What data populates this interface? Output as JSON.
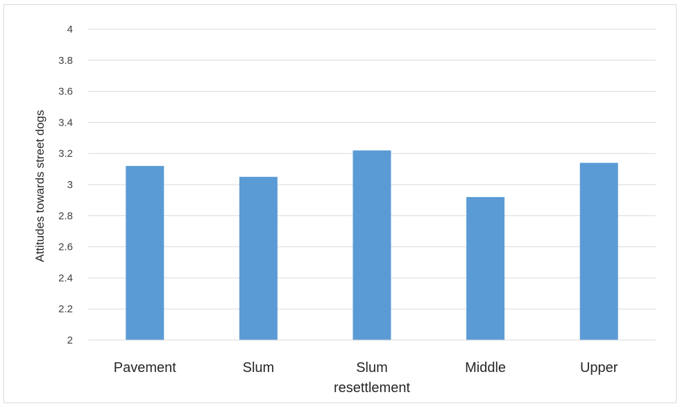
{
  "chart_data": {
    "type": "bar",
    "title": "",
    "xlabel": "",
    "ylabel": "Attitudes towards street dogs",
    "categories": [
      [
        "Pavement"
      ],
      [
        "Slum"
      ],
      [
        "Slum",
        "resettlement"
      ],
      [
        "Middle"
      ],
      [
        "Upper"
      ]
    ],
    "values": [
      3.12,
      3.05,
      3.22,
      2.92,
      3.14
    ],
    "ylim": [
      2,
      4
    ],
    "yticks": [
      "2",
      "2.2",
      "2.4",
      "2.6",
      "2.8",
      "3",
      "3.2",
      "3.4",
      "3.6",
      "3.8",
      "4"
    ],
    "bar_color": "#5b9bd5",
    "grid_color": "#d9d9d9",
    "grid": true,
    "legend": "none"
  }
}
